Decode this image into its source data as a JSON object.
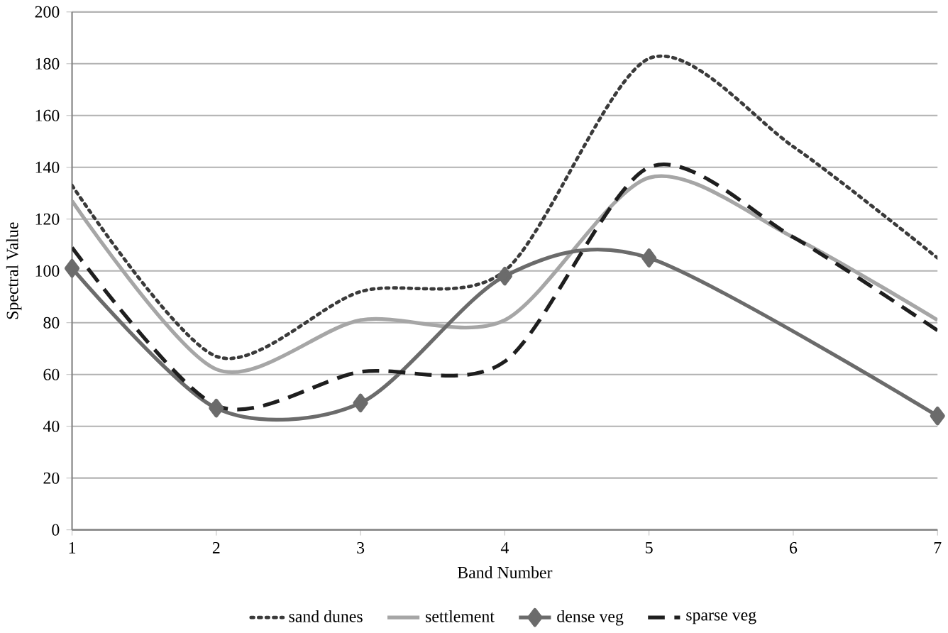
{
  "chart_data": {
    "type": "line",
    "xlabel": "Band Number",
    "ylabel": "Spectral Value",
    "x": [
      1,
      2,
      3,
      4,
      5,
      6,
      7
    ],
    "xlim": [
      1,
      7
    ],
    "xticks": [
      1,
      2,
      3,
      4,
      5,
      6,
      7
    ],
    "ylim": [
      0,
      200
    ],
    "yticks": [
      0,
      20,
      40,
      60,
      80,
      100,
      120,
      140,
      160,
      180,
      200
    ],
    "grid": "y",
    "legend": "bottom",
    "series": [
      {
        "name": "sand dunes",
        "color": "#3a3a3a",
        "line_style": "dotted",
        "marker": "none",
        "values": [
          133,
          67,
          92,
          100,
          182,
          148,
          105
        ]
      },
      {
        "name": "settlement",
        "color": "#a6a6a6",
        "line_style": "solid",
        "marker": "none",
        "values": [
          127,
          62,
          81,
          81,
          136,
          113,
          81
        ]
      },
      {
        "name": "dense veg",
        "color": "#6b6b6b",
        "line_style": "solid",
        "marker": "diamond",
        "values": [
          101,
          47,
          49,
          98,
          105,
          null,
          44
        ]
      },
      {
        "name": "sparse veg",
        "color": "#1e1e1e",
        "line_style": "dashed",
        "marker": "none",
        "values": [
          109,
          48,
          61,
          65,
          140,
          113,
          77
        ]
      }
    ]
  }
}
